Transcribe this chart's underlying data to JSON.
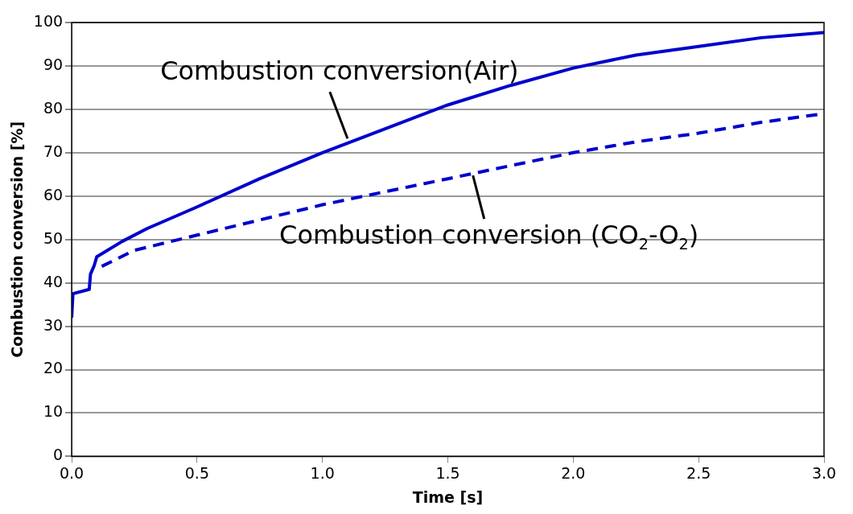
{
  "chart_data": {
    "type": "line",
    "xlabel": "Time [s]",
    "ylabel": "Combustion conversion [%]",
    "xlim": [
      0,
      3
    ],
    "xticks": [
      {
        "value": 0,
        "label": "0.0"
      },
      {
        "value": 0.5,
        "label": "0.5"
      },
      {
        "value": 1,
        "label": "1.0"
      },
      {
        "value": 1.5,
        "label": "1.5"
      },
      {
        "value": 2,
        "label": "2.0"
      },
      {
        "value": 2.5,
        "label": "2.5"
      },
      {
        "value": 3,
        "label": "3.0"
      }
    ],
    "ylim": [
      0,
      100
    ],
    "yticks": [
      0,
      10,
      20,
      30,
      40,
      50,
      60,
      70,
      80,
      90,
      100
    ],
    "grid": "y",
    "legend": false,
    "marker": "none",
    "series": [
      {
        "color": "#0000cc",
        "line_style": "solid",
        "x": [
          0,
          0.005,
          0.07,
          0.075,
          0.09,
          0.1,
          0.2,
          0.3,
          0.5,
          0.75,
          1.0,
          1.25,
          1.5,
          1.75,
          2.0,
          2.25,
          2.5,
          2.75,
          3.0
        ],
        "values": [
          32,
          37.5,
          38.5,
          42,
          44,
          46,
          49.5,
          52.5,
          57.5,
          64,
          70,
          75.5,
          81,
          85.5,
          89.5,
          92.5,
          94.5,
          96.5,
          97.7
        ]
      },
      {
        "color": "#0000cc",
        "line_style": "dashed",
        "x": [
          0.12,
          0.25,
          0.5,
          0.75,
          1.0,
          1.25,
          1.5,
          1.75,
          2.0,
          2.25,
          2.5,
          2.75,
          3.0
        ],
        "values": [
          43.8,
          47.5,
          51,
          54.5,
          58,
          61,
          64,
          67,
          70,
          72.5,
          74.5,
          77,
          79
        ]
      }
    ],
    "annotations": [
      {
        "text": "Combustion conversion(Air)",
        "x": 1.1,
        "y": 72.5
      },
      {
        "text": "Combustion conversion (CO$_{2}$-O$_{2}$)",
        "x": 1.6,
        "y": 65.5
      }
    ]
  }
}
